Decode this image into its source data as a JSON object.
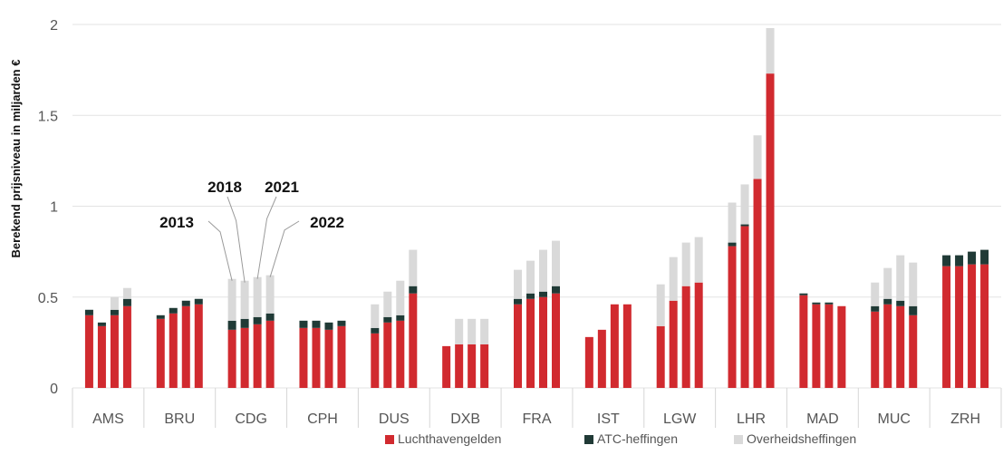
{
  "chart_data": {
    "type": "bar",
    "stacked": true,
    "ylabel": "Berekend prijsniveau in miljarden €",
    "ylim": [
      0,
      2
    ],
    "yticks": [
      "0",
      "0.5",
      "1",
      "1.5",
      "2"
    ],
    "grid": true,
    "legend_position": "bottom",
    "categories": [
      "AMS",
      "BRU",
      "CDG",
      "CPH",
      "DUS",
      "DXB",
      "FRA",
      "IST",
      "LGW",
      "LHR",
      "MAD",
      "MUC",
      "ZRH"
    ],
    "years": [
      "2013",
      "2018",
      "2021",
      "2022"
    ],
    "series": [
      {
        "name": "Luchthavengelden",
        "color": "#d12a2f"
      },
      {
        "name": "ATC-heffingen",
        "color": "#203a36"
      },
      {
        "name": "Overheidsheffingen",
        "color": "#d9d9d9"
      }
    ],
    "groups": [
      {
        "category": "AMS",
        "bars": [
          [
            0.4,
            0.03,
            0.0
          ],
          [
            0.34,
            0.02,
            0.0
          ],
          [
            0.4,
            0.03,
            0.07
          ],
          [
            0.45,
            0.04,
            0.06
          ]
        ]
      },
      {
        "category": "BRU",
        "bars": [
          [
            0.38,
            0.02,
            0.0
          ],
          [
            0.41,
            0.03,
            0.0
          ],
          [
            0.45,
            0.03,
            0.0
          ],
          [
            0.46,
            0.03,
            0.0
          ]
        ]
      },
      {
        "category": "CDG",
        "bars": [
          [
            0.32,
            0.05,
            0.23
          ],
          [
            0.33,
            0.05,
            0.21
          ],
          [
            0.35,
            0.04,
            0.22
          ],
          [
            0.37,
            0.04,
            0.21
          ]
        ]
      },
      {
        "category": "CPH",
        "bars": [
          [
            0.33,
            0.04,
            0.0
          ],
          [
            0.33,
            0.04,
            0.0
          ],
          [
            0.32,
            0.04,
            0.0
          ],
          [
            0.34,
            0.03,
            0.0
          ]
        ]
      },
      {
        "category": "DUS",
        "bars": [
          [
            0.3,
            0.03,
            0.13
          ],
          [
            0.36,
            0.03,
            0.14
          ],
          [
            0.37,
            0.03,
            0.19
          ],
          [
            0.52,
            0.04,
            0.2
          ]
        ]
      },
      {
        "category": "DXB",
        "bars": [
          [
            0.23,
            0.0,
            0.0
          ],
          [
            0.24,
            0.0,
            0.14
          ],
          [
            0.24,
            0.0,
            0.14
          ],
          [
            0.24,
            0.0,
            0.14
          ]
        ]
      },
      {
        "category": "FRA",
        "bars": [
          [
            0.46,
            0.03,
            0.16
          ],
          [
            0.49,
            0.03,
            0.18
          ],
          [
            0.5,
            0.03,
            0.23
          ],
          [
            0.52,
            0.04,
            0.25
          ]
        ]
      },
      {
        "category": "IST",
        "bars": [
          [
            0.28,
            0.0,
            0.0
          ],
          [
            0.32,
            0.0,
            0.0
          ],
          [
            0.46,
            0.0,
            0.0
          ],
          [
            0.46,
            0.0,
            0.0
          ]
        ]
      },
      {
        "category": "LGW",
        "bars": [
          [
            0.34,
            0.0,
            0.23
          ],
          [
            0.48,
            0.0,
            0.24
          ],
          [
            0.56,
            0.0,
            0.24
          ],
          [
            0.58,
            0.0,
            0.25
          ]
        ]
      },
      {
        "category": "LHR",
        "bars": [
          [
            0.78,
            0.02,
            0.22
          ],
          [
            0.89,
            0.01,
            0.22
          ],
          [
            1.15,
            0.0,
            0.24
          ],
          [
            1.73,
            0.0,
            0.25
          ]
        ]
      },
      {
        "category": "MAD",
        "bars": [
          [
            0.51,
            0.01,
            0.0
          ],
          [
            0.46,
            0.01,
            0.0
          ],
          [
            0.46,
            0.01,
            0.0
          ],
          [
            0.45,
            0.0,
            0.0
          ]
        ]
      },
      {
        "category": "MUC",
        "bars": [
          [
            0.42,
            0.03,
            0.13
          ],
          [
            0.46,
            0.03,
            0.17
          ],
          [
            0.45,
            0.03,
            0.25
          ],
          [
            0.4,
            0.05,
            0.24
          ]
        ]
      },
      {
        "category": "ZRH",
        "bars": [
          [
            0.67,
            0.06,
            0.0
          ],
          [
            0.67,
            0.06,
            0.0
          ],
          [
            0.68,
            0.07,
            0.0
          ],
          [
            0.68,
            0.08,
            0.0
          ]
        ]
      }
    ],
    "annotations": {
      "category": "CDG",
      "labels": [
        "2013",
        "2018",
        "2021",
        "2022"
      ]
    }
  }
}
